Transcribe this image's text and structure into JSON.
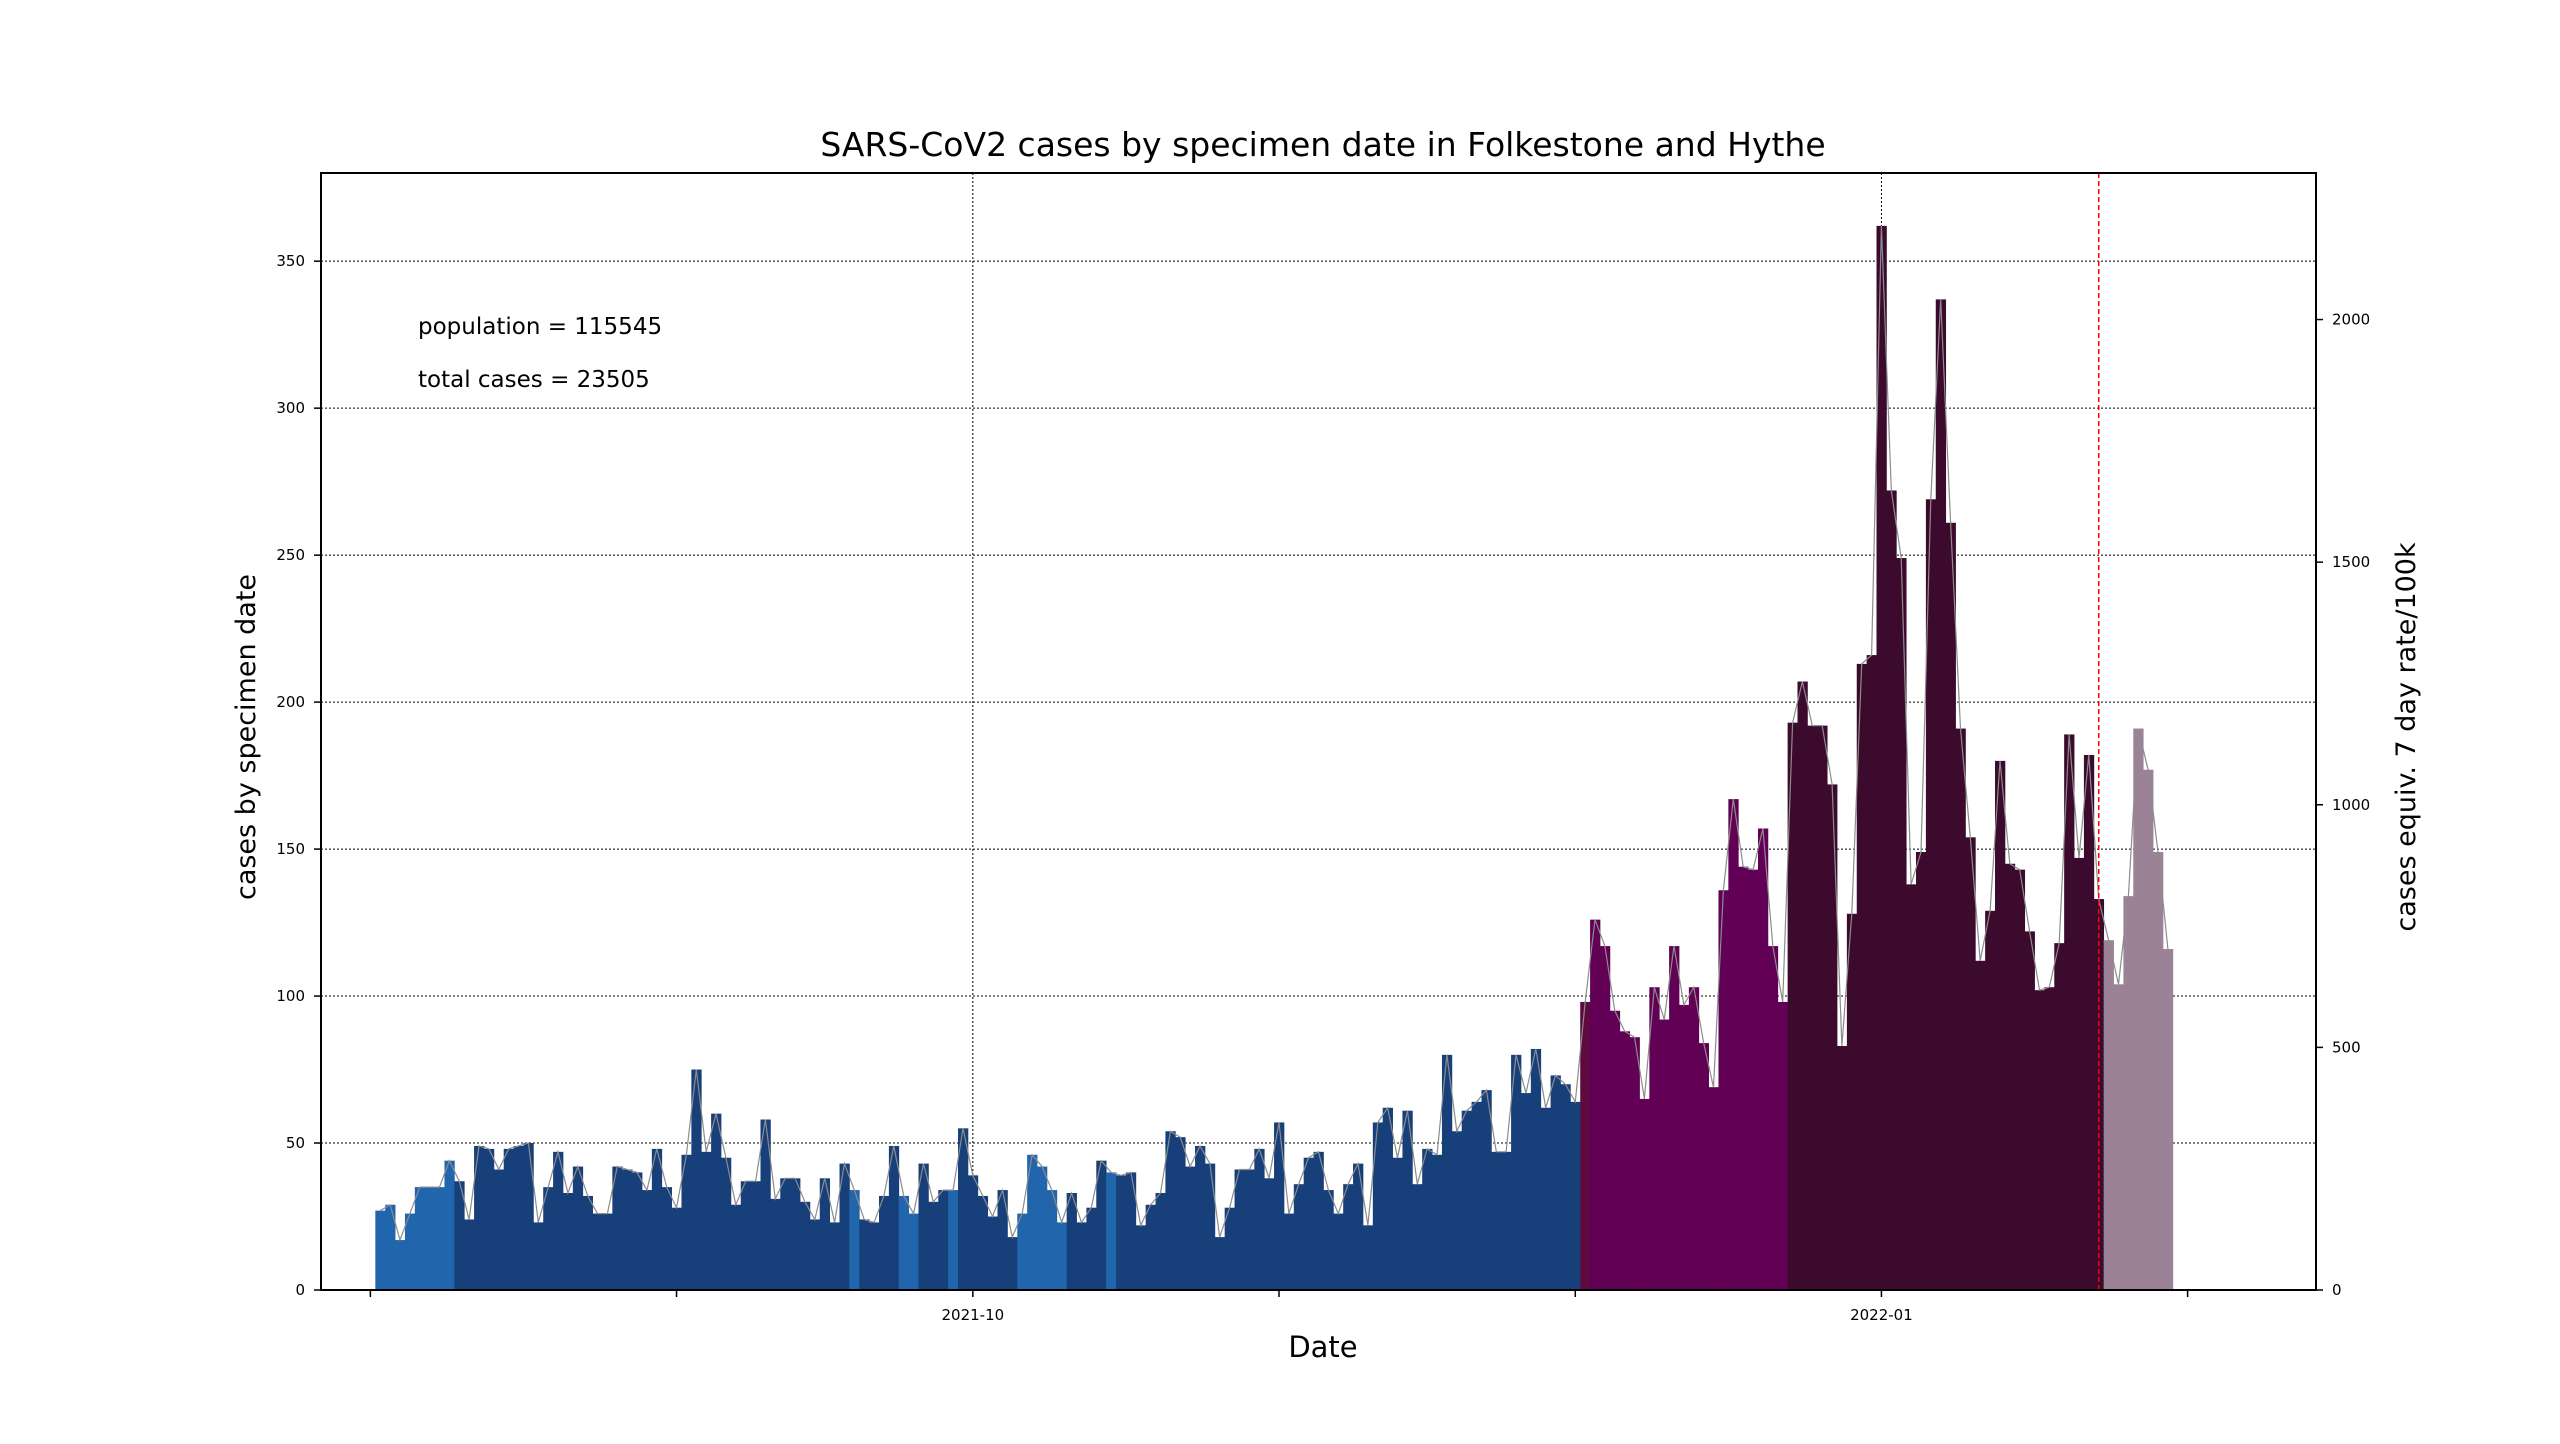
{
  "chart_data": {
    "type": "bar",
    "title": "SARS-CoV2 cases by specimen date in Folkestone and Hythe",
    "xlabel": "Date",
    "ylabel": "cases by specimen date",
    "y2label": "cases equiv. 7 day rate/100k",
    "annotations": [
      "population = 115545",
      "total cases = 23505"
    ],
    "x_start": "2021-08-02",
    "x_range": [
      "2021-07-27",
      "2022-02-14"
    ],
    "ylim": [
      0,
      380
    ],
    "y2lim": [
      0,
      2302
    ],
    "yticks": [
      0,
      50,
      100,
      150,
      200,
      250,
      300,
      350
    ],
    "y2ticks": [
      0,
      500,
      1000,
      1500,
      2000
    ],
    "xticks": [
      {
        "date": "2021-08-01",
        "label": ""
      },
      {
        "date": "2021-09-01",
        "label": ""
      },
      {
        "date": "2021-10-01",
        "label": "2021-10"
      },
      {
        "date": "2021-11-01",
        "label": ""
      },
      {
        "date": "2021-12-01",
        "label": ""
      },
      {
        "date": "2022-01-01",
        "label": "2022-01"
      },
      {
        "date": "2022-02-01",
        "label": ""
      }
    ],
    "grid": true,
    "marker_line_date": "2022-01-23",
    "colors": {
      "light_blue": "#2166ac",
      "dark_blue": "#173f7a",
      "crimson": "#5e0a3f",
      "purple": "#610055",
      "dark_purple": "#3c0a2c",
      "provisional": "#9b8296",
      "marker_line": "#ff0000",
      "rolling_line": "#8c8c8c"
    },
    "color_boundaries": {
      "light_blue_until_index": 7,
      "crimson_index": 122,
      "purple_until_index": 142,
      "provisional_from_index": 175
    },
    "light_blue_indices": [
      48,
      53,
      54,
      58,
      65,
      66,
      67,
      68,
      69,
      74
    ],
    "values": [
      27,
      29,
      17,
      26,
      35,
      35,
      35,
      44,
      37,
      24,
      49,
      48,
      41,
      48,
      49,
      50,
      23,
      35,
      47,
      33,
      42,
      32,
      26,
      26,
      42,
      41,
      40,
      34,
      48,
      35,
      28,
      46,
      75,
      47,
      60,
      45,
      29,
      37,
      37,
      58,
      31,
      38,
      38,
      30,
      24,
      38,
      23,
      43,
      34,
      24,
      23,
      32,
      49,
      32,
      26,
      43,
      30,
      34,
      34,
      55,
      39,
      32,
      25,
      34,
      18,
      26,
      46,
      42,
      34,
      23,
      33,
      23,
      28,
      44,
      40,
      39,
      40,
      22,
      29,
      33,
      54,
      52,
      42,
      49,
      43,
      18,
      28,
      41,
      41,
      48,
      38,
      57,
      26,
      36,
      45,
      47,
      34,
      26,
      36,
      43,
      22,
      57,
      62,
      45,
      61,
      36,
      48,
      46,
      80,
      54,
      61,
      64,
      68,
      47,
      47,
      80,
      67,
      82,
      62,
      73,
      70,
      64,
      98,
      126,
      117,
      95,
      88,
      86,
      65,
      103,
      92,
      117,
      97,
      103,
      84,
      69,
      136,
      167,
      144,
      143,
      157,
      117,
      98,
      193,
      207,
      192,
      192,
      172,
      83,
      128,
      213,
      216,
      362,
      272,
      249,
      138,
      149,
      269,
      337,
      261,
      191,
      154,
      112,
      129,
      180,
      145,
      143,
      122,
      102,
      103,
      118,
      189,
      147,
      182,
      133,
      119,
      104,
      134,
      191,
      177,
      149,
      116
    ]
  }
}
